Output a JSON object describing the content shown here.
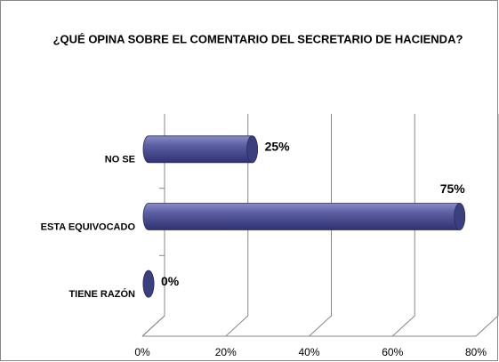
{
  "chart_data": {
    "type": "bar",
    "orientation": "horizontal",
    "title": "¿QUÉ OPINA SOBRE EL COMENTARIO DEL SECRETARIO DE HACIENDA?",
    "categories": [
      "NO SE",
      "ESTA EQUIVOCADO",
      "TIENE RAZÓN"
    ],
    "values": [
      25,
      75,
      0
    ],
    "value_labels": [
      "25%",
      "75%",
      "0%"
    ],
    "color": "#4b4e8f",
    "xlim": [
      0,
      80
    ],
    "xticks": [
      {
        "value": 0,
        "label": "0%"
      },
      {
        "value": 20,
        "label": "20%"
      },
      {
        "value": 40,
        "label": "40%"
      },
      {
        "value": 60,
        "label": "60%"
      },
      {
        "value": 80,
        "label": "80%"
      }
    ],
    "grid": true
  }
}
